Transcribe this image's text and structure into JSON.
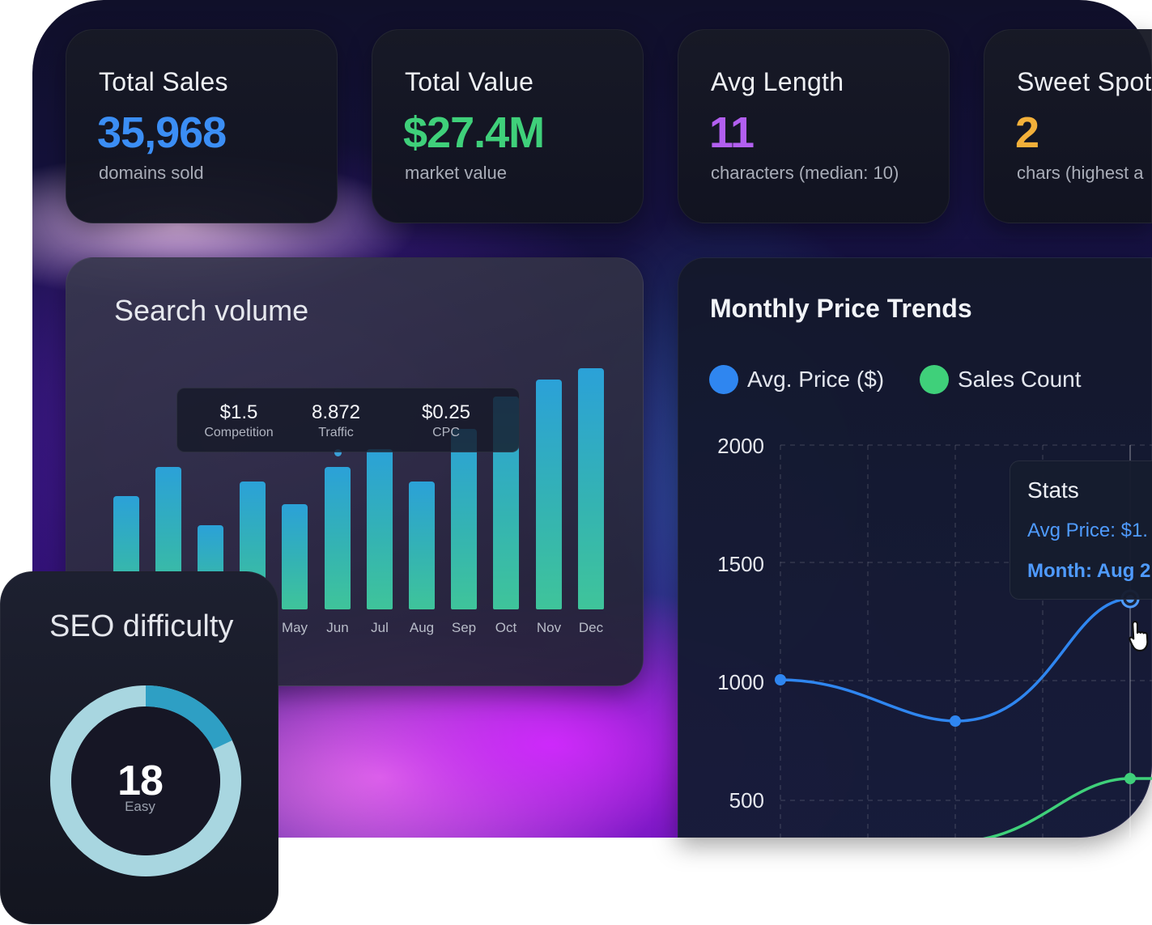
{
  "stats": [
    {
      "title": "Total Sales",
      "value": "35,968",
      "sub": "domains sold",
      "color": "#3b8ef5"
    },
    {
      "title": "Total Value",
      "value": "$27.4M",
      "sub": "market value",
      "color": "#3fd07a"
    },
    {
      "title": "Avg Length",
      "value": "11",
      "sub": "characters (median: 10)",
      "color": "#b25ff0"
    },
    {
      "title": "Sweet Spot",
      "value": "2",
      "sub": "chars (highest a",
      "color": "#f3b03a"
    }
  ],
  "search_volume": {
    "title": "Search volume",
    "tooltip": [
      {
        "value": "$1.5",
        "label": "Competition"
      },
      {
        "value": "8.872",
        "label": "Traffic"
      },
      {
        "value": "$0.25",
        "label": "CPC"
      }
    ],
    "months_visible": [
      "May",
      "Jun",
      "Jul",
      "Aug",
      "Sep",
      "Oct",
      "Nov",
      "Dec"
    ]
  },
  "trends": {
    "title": "Monthly Price Trends",
    "legend": [
      {
        "label": "Avg. Price ($)",
        "color": "#2f86f0"
      },
      {
        "label": "Sales Count",
        "color": "#3fd07a"
      }
    ],
    "y_ticks": [
      "2000",
      "1500",
      "1000",
      "500"
    ],
    "stats_box": {
      "title": "Stats",
      "avg_price": "Avg Price: $1.",
      "month": "Month: Aug 2"
    }
  },
  "seo": {
    "title": "SEO difficulty",
    "value": "18",
    "label": "Easy"
  }
}
